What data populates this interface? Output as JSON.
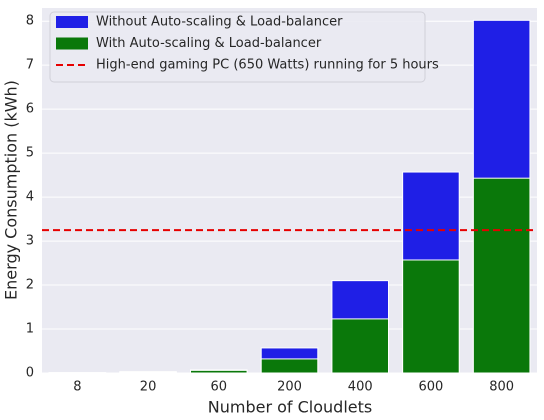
{
  "chart_data": {
    "type": "bar",
    "x_label": "Number of Cloudlets",
    "y_label": "Energy Consumption (kWh)",
    "categories": [
      "8",
      "20",
      "60",
      "200",
      "400",
      "600",
      "800"
    ],
    "series": [
      {
        "name": "Without Auto-scaling & Load-balancer",
        "color": "#1f1fe6",
        "values": [
          0.01,
          0.03,
          0.07,
          0.57,
          2.1,
          4.57,
          8.02
        ]
      },
      {
        "name": "With Auto-scaling & Load-balancer",
        "color": "#0a780a",
        "values": [
          0.005,
          0.015,
          0.06,
          0.32,
          1.23,
          2.57,
          4.43
        ]
      }
    ],
    "reference_line": {
      "name": "High-end gaming PC (650 Watts) running for 5 hours",
      "value": 3.25,
      "color": "#e60000"
    },
    "ylim": [
      0,
      8.3
    ],
    "yticks": [
      0,
      1,
      2,
      3,
      4,
      5,
      6,
      7,
      8
    ],
    "grid": true,
    "legend": "upper left"
  }
}
